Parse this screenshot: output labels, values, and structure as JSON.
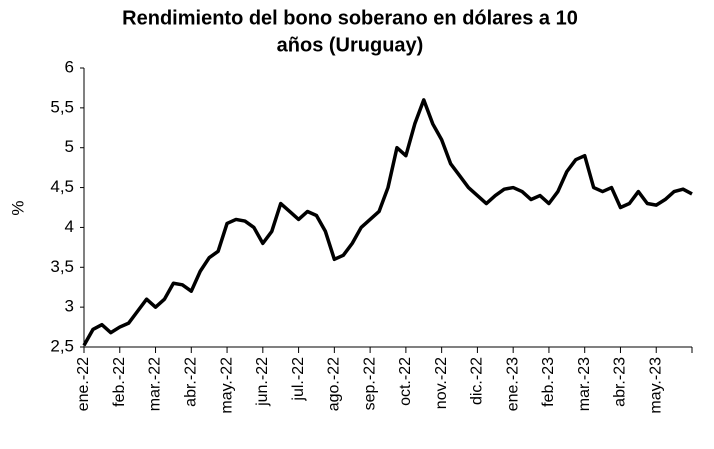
{
  "chart_data": {
    "type": "line",
    "title": [
      "Rendimiento del bono soberano en dólares a 10",
      "años (Uruguay)"
    ],
    "y_label": "%",
    "categories": [
      "ene.-22",
      null,
      null,
      null,
      "feb.-22",
      null,
      null,
      null,
      "mar.-22",
      null,
      null,
      null,
      "abr.-22",
      null,
      null,
      null,
      "may.-22",
      null,
      null,
      null,
      "jun.-22",
      null,
      null,
      null,
      "jul.-22",
      null,
      null,
      null,
      "ago.-22",
      null,
      null,
      null,
      "sep.-22",
      null,
      null,
      null,
      "oct.-22",
      null,
      null,
      null,
      "nov.-22",
      null,
      null,
      null,
      "dic.-22",
      null,
      null,
      null,
      "ene.-23",
      null,
      null,
      null,
      "feb.-23",
      null,
      null,
      null,
      "mar.-23",
      null,
      null,
      null,
      "abr.-23",
      null,
      null,
      null,
      "may.-23",
      null,
      null,
      null,
      null
    ],
    "values": [
      2.52,
      2.72,
      2.78,
      2.68,
      2.75,
      2.8,
      2.95,
      3.1,
      3.0,
      3.1,
      3.3,
      3.28,
      3.2,
      3.45,
      3.62,
      3.7,
      4.05,
      4.1,
      4.08,
      4.0,
      3.8,
      3.95,
      4.3,
      4.2,
      4.1,
      4.2,
      4.15,
      3.95,
      3.6,
      3.65,
      3.8,
      4.0,
      4.1,
      4.2,
      4.5,
      5.0,
      4.9,
      5.3,
      5.6,
      5.3,
      5.1,
      4.8,
      4.65,
      4.5,
      4.4,
      4.3,
      4.4,
      4.48,
      4.5,
      4.45,
      4.35,
      4.4,
      4.3,
      4.45,
      4.7,
      4.85,
      4.9,
      4.5,
      4.45,
      4.5,
      4.25,
      4.3,
      4.45,
      4.3,
      4.28,
      4.35,
      4.45,
      4.48,
      4.42
    ],
    "color": "#000000",
    "ylim": [
      2.5,
      6
    ],
    "yticks": [
      {
        "value": 2.5,
        "label": "2,5"
      },
      3,
      {
        "value": 3.5,
        "label": "3,5"
      },
      4,
      {
        "value": 4.5,
        "label": "4,5"
      },
      5,
      {
        "value": 5.5,
        "label": "5,5"
      },
      6
    ],
    "grid": false
  }
}
